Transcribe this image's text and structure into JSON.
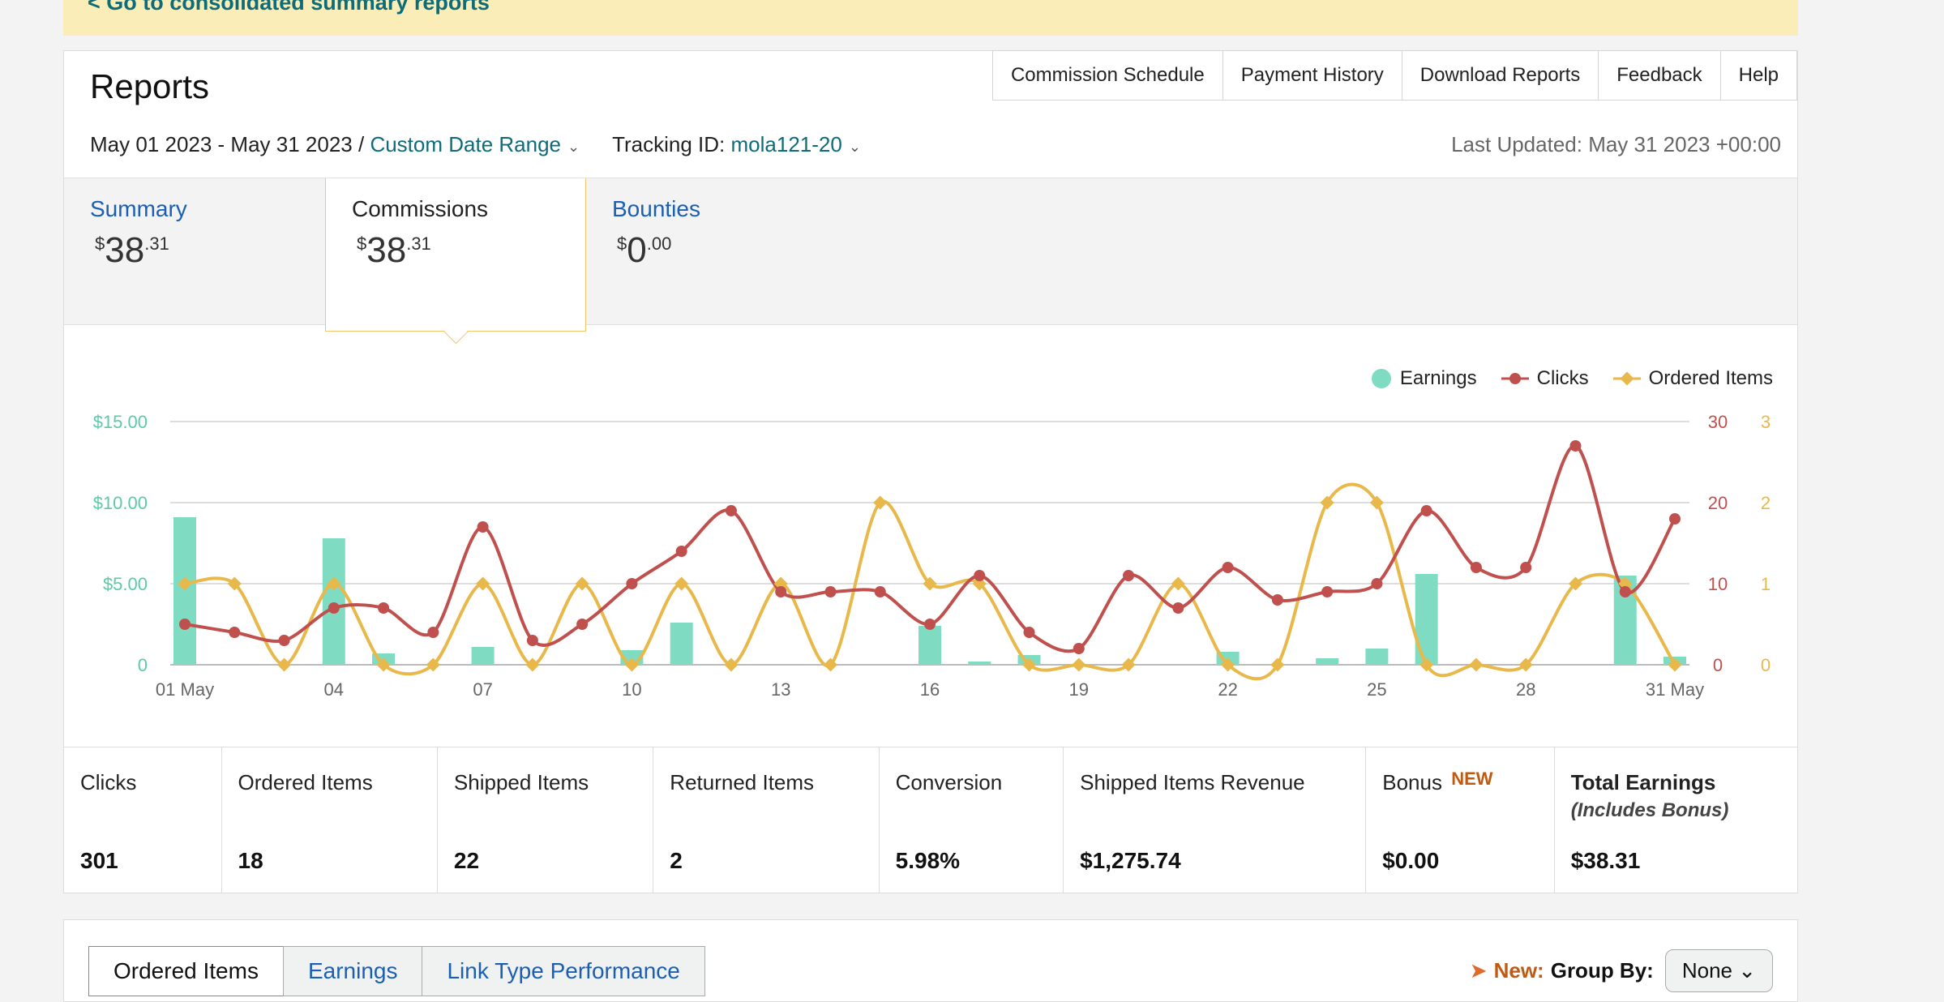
{
  "top_link": "< Go to consolidated summary reports",
  "page_title": "Reports",
  "nav": [
    "Commission Schedule",
    "Payment History",
    "Download Reports",
    "Feedback",
    "Help"
  ],
  "filters": {
    "date_range": "May 01 2023 - May 31 2023 /",
    "date_mode": "Custom Date Range",
    "tracking_label": "Tracking ID:",
    "tracking_id": "mola121-20",
    "last_updated": "Last Updated: May 31 2023 +00:00"
  },
  "tabs": [
    {
      "label": "Summary",
      "amount_sym": "$",
      "amount_int": "38",
      "amount_dec": ".31"
    },
    {
      "label": "Commissions",
      "amount_sym": "$",
      "amount_int": "38",
      "amount_dec": ".31"
    },
    {
      "label": "Bounties",
      "amount_sym": "$",
      "amount_int": "0",
      "amount_dec": ".00"
    }
  ],
  "colors": {
    "earnings": "#7fdcc3",
    "clicks": "#c0504d",
    "ordered": "#e8b84a"
  },
  "chart_data": {
    "type": "bar+line",
    "legend": [
      "Earnings",
      "Clicks",
      "Ordered Items"
    ],
    "x_tick_labels": [
      "01 May",
      "04",
      "07",
      "10",
      "13",
      "16",
      "19",
      "22",
      "25",
      "28",
      "31 May"
    ],
    "y_left_ticks": [
      "$15.00",
      "$10.00",
      "$5.00",
      "0"
    ],
    "y_mid_ticks": [
      "30",
      "20",
      "10",
      "0"
    ],
    "y_right_ticks": [
      "3",
      "2",
      "1",
      "0"
    ],
    "ylim_earnings": [
      0,
      15
    ],
    "ylim_clicks": [
      0,
      30
    ],
    "ylim_ordered": [
      0,
      3
    ],
    "days": [
      1,
      2,
      3,
      4,
      5,
      6,
      7,
      8,
      9,
      10,
      11,
      12,
      13,
      14,
      15,
      16,
      17,
      18,
      19,
      20,
      21,
      22,
      23,
      24,
      25,
      26,
      27,
      28,
      29,
      30,
      31
    ],
    "series": [
      {
        "name": "Earnings",
        "values": [
          9.1,
          0,
          0,
          7.8,
          0.7,
          0,
          1.1,
          0,
          0,
          0.9,
          2.6,
          0,
          0,
          0,
          0,
          2.4,
          0.2,
          0.6,
          0,
          0,
          0,
          0.8,
          0,
          0.4,
          1.0,
          5.6,
          0,
          0,
          0,
          5.5,
          0.5
        ]
      },
      {
        "name": "Clicks",
        "values": [
          5,
          4,
          3,
          7,
          7,
          4,
          17,
          3,
          5,
          10,
          14,
          19,
          9,
          9,
          9,
          5,
          11,
          4,
          2,
          11,
          7,
          12,
          8,
          9,
          10,
          19,
          12,
          12,
          27,
          9,
          18
        ]
      },
      {
        "name": "Ordered Items",
        "values": [
          1,
          1,
          0,
          1,
          0,
          0,
          1,
          0,
          1,
          0,
          1,
          0,
          1,
          0,
          2,
          1,
          1,
          0,
          0,
          0,
          1,
          0,
          0,
          2,
          2,
          0,
          0,
          0,
          1,
          1,
          0
        ]
      }
    ]
  },
  "stats": [
    {
      "label": "Clicks",
      "value": "301"
    },
    {
      "label": "Ordered Items",
      "value": "18"
    },
    {
      "label": "Shipped Items",
      "value": "22"
    },
    {
      "label": "Returned Items",
      "value": "2"
    },
    {
      "label": "Conversion",
      "value": "5.98%"
    },
    {
      "label": "Shipped Items Revenue",
      "value": "$1,275.74"
    },
    {
      "label": "Bonus",
      "badge": "NEW",
      "value": "$0.00"
    },
    {
      "label": "Total Earnings",
      "sub": "(Includes Bonus)",
      "value": "$38.31"
    }
  ],
  "bottom_tabs": [
    "Ordered Items",
    "Earnings",
    "Link Type Performance"
  ],
  "group_by": {
    "new": "New:",
    "label": "Group By:",
    "value": "None"
  }
}
